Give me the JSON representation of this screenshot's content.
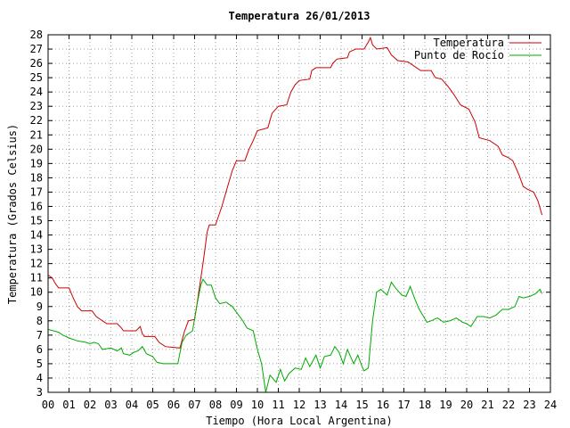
{
  "chart_data": {
    "type": "line",
    "title": "Temperatura 26/01/2013",
    "xlabel": "Tiempo (Hora Local Argentina)",
    "ylabel": "Temperatura (Grados Celsius)",
    "xlim": [
      0,
      24
    ],
    "ylim": [
      3,
      28
    ],
    "x_ticks": [
      "00",
      "01",
      "02",
      "03",
      "04",
      "05",
      "06",
      "07",
      "08",
      "09",
      "10",
      "11",
      "12",
      "13",
      "14",
      "15",
      "16",
      "17",
      "18",
      "19",
      "20",
      "21",
      "22",
      "23",
      "24"
    ],
    "y_ticks": [
      3,
      4,
      5,
      6,
      7,
      8,
      9,
      10,
      11,
      12,
      13,
      14,
      15,
      16,
      17,
      18,
      19,
      20,
      21,
      22,
      23,
      24,
      25,
      26,
      27,
      28
    ],
    "grid": true,
    "legend_position": "top-right",
    "series": [
      {
        "name": "Temperatura",
        "color": "#cc0000",
        "points": [
          [
            0,
            11.2
          ],
          [
            0.2,
            11.0
          ],
          [
            0.35,
            10.6
          ],
          [
            0.5,
            10.3
          ],
          [
            1.0,
            10.3
          ],
          [
            1.2,
            9.6
          ],
          [
            1.4,
            9.0
          ],
          [
            1.6,
            8.7
          ],
          [
            2.1,
            8.7
          ],
          [
            2.3,
            8.3
          ],
          [
            2.6,
            8.0
          ],
          [
            2.8,
            7.8
          ],
          [
            3.3,
            7.8
          ],
          [
            3.5,
            7.5
          ],
          [
            3.6,
            7.3
          ],
          [
            4.2,
            7.3
          ],
          [
            4.4,
            7.6
          ],
          [
            4.5,
            7.1
          ],
          [
            4.6,
            6.9
          ],
          [
            5.1,
            6.9
          ],
          [
            5.3,
            6.5
          ],
          [
            5.6,
            6.2
          ],
          [
            6.3,
            6.1
          ],
          [
            6.5,
            7.2
          ],
          [
            6.7,
            8.0
          ],
          [
            7.0,
            8.1
          ],
          [
            7.1,
            9.0
          ],
          [
            7.2,
            10.0
          ],
          [
            7.4,
            12.0
          ],
          [
            7.6,
            14.2
          ],
          [
            7.7,
            14.7
          ],
          [
            8.0,
            14.7
          ],
          [
            8.3,
            16.0
          ],
          [
            8.6,
            17.5
          ],
          [
            8.8,
            18.5
          ],
          [
            9.0,
            19.2
          ],
          [
            9.4,
            19.2
          ],
          [
            9.6,
            20.0
          ],
          [
            9.8,
            20.6
          ],
          [
            10.0,
            21.3
          ],
          [
            10.5,
            21.5
          ],
          [
            10.7,
            22.5
          ],
          [
            11.0,
            23.0
          ],
          [
            11.4,
            23.1
          ],
          [
            11.6,
            24.0
          ],
          [
            11.8,
            24.5
          ],
          [
            12.0,
            24.8
          ],
          [
            12.5,
            24.9
          ],
          [
            12.6,
            25.5
          ],
          [
            12.8,
            25.7
          ],
          [
            13.5,
            25.7
          ],
          [
            13.6,
            26.0
          ],
          [
            13.8,
            26.3
          ],
          [
            14.3,
            26.4
          ],
          [
            14.4,
            26.8
          ],
          [
            14.7,
            27.0
          ],
          [
            15.1,
            27.0
          ],
          [
            15.3,
            27.5
          ],
          [
            15.4,
            27.8
          ],
          [
            15.5,
            27.3
          ],
          [
            15.7,
            27.0
          ],
          [
            16.2,
            27.1
          ],
          [
            16.4,
            26.6
          ],
          [
            16.7,
            26.2
          ],
          [
            17.2,
            26.1
          ],
          [
            17.5,
            25.8
          ],
          [
            17.8,
            25.5
          ],
          [
            18.3,
            25.5
          ],
          [
            18.5,
            25.0
          ],
          [
            18.8,
            24.9
          ],
          [
            19.1,
            24.4
          ],
          [
            19.4,
            23.8
          ],
          [
            19.7,
            23.1
          ],
          [
            20.1,
            22.8
          ],
          [
            20.4,
            21.9
          ],
          [
            20.6,
            20.8
          ],
          [
            21.1,
            20.6
          ],
          [
            21.5,
            20.2
          ],
          [
            21.7,
            19.6
          ],
          [
            22.0,
            19.4
          ],
          [
            22.2,
            19.2
          ],
          [
            22.5,
            18.2
          ],
          [
            22.7,
            17.4
          ],
          [
            22.9,
            17.2
          ],
          [
            23.2,
            17.0
          ],
          [
            23.4,
            16.4
          ],
          [
            23.6,
            15.4
          ]
        ]
      },
      {
        "name": "Punto de Rocío",
        "color": "#00aa00",
        "points": [
          [
            0,
            7.4
          ],
          [
            0.5,
            7.2
          ],
          [
            0.7,
            7.0
          ],
          [
            1.0,
            6.8
          ],
          [
            1.4,
            6.6
          ],
          [
            1.8,
            6.5
          ],
          [
            2.0,
            6.4
          ],
          [
            2.2,
            6.5
          ],
          [
            2.4,
            6.4
          ],
          [
            2.6,
            6.0
          ],
          [
            3.0,
            6.1
          ],
          [
            3.3,
            5.9
          ],
          [
            3.5,
            6.1
          ],
          [
            3.6,
            5.7
          ],
          [
            3.9,
            5.6
          ],
          [
            4.1,
            5.8
          ],
          [
            4.3,
            5.9
          ],
          [
            4.5,
            6.2
          ],
          [
            4.7,
            5.7
          ],
          [
            5.0,
            5.5
          ],
          [
            5.2,
            5.1
          ],
          [
            5.5,
            5.0
          ],
          [
            6.0,
            5.0
          ],
          [
            6.2,
            5.0
          ],
          [
            6.4,
            6.5
          ],
          [
            6.6,
            7.0
          ],
          [
            6.9,
            7.3
          ],
          [
            7.1,
            9.0
          ],
          [
            7.3,
            10.5
          ],
          [
            7.4,
            10.9
          ],
          [
            7.6,
            10.5
          ],
          [
            7.8,
            10.5
          ],
          [
            8.0,
            9.6
          ],
          [
            8.2,
            9.2
          ],
          [
            8.5,
            9.3
          ],
          [
            8.8,
            9.0
          ],
          [
            9.1,
            8.4
          ],
          [
            9.3,
            8.0
          ],
          [
            9.5,
            7.5
          ],
          [
            9.8,
            7.3
          ],
          [
            10.0,
            6.0
          ],
          [
            10.2,
            5.0
          ],
          [
            10.4,
            3.0
          ],
          [
            10.6,
            4.2
          ],
          [
            10.9,
            3.7
          ],
          [
            11.1,
            4.6
          ],
          [
            11.3,
            3.8
          ],
          [
            11.5,
            4.3
          ],
          [
            11.8,
            4.7
          ],
          [
            12.1,
            4.6
          ],
          [
            12.3,
            5.4
          ],
          [
            12.5,
            4.8
          ],
          [
            12.8,
            5.6
          ],
          [
            13.0,
            4.7
          ],
          [
            13.2,
            5.5
          ],
          [
            13.5,
            5.6
          ],
          [
            13.7,
            6.2
          ],
          [
            13.9,
            5.8
          ],
          [
            14.1,
            5.0
          ],
          [
            14.3,
            6.0
          ],
          [
            14.6,
            5.0
          ],
          [
            14.8,
            5.6
          ],
          [
            15.0,
            4.8
          ],
          [
            15.1,
            4.5
          ],
          [
            15.3,
            4.7
          ],
          [
            15.5,
            8.0
          ],
          [
            15.7,
            10.0
          ],
          [
            15.9,
            10.2
          ],
          [
            16.2,
            9.8
          ],
          [
            16.4,
            10.7
          ],
          [
            16.6,
            10.3
          ],
          [
            16.9,
            9.8
          ],
          [
            17.1,
            9.7
          ],
          [
            17.3,
            10.4
          ],
          [
            17.5,
            9.6
          ],
          [
            17.7,
            8.9
          ],
          [
            17.9,
            8.4
          ],
          [
            18.1,
            7.9
          ],
          [
            18.3,
            8.0
          ],
          [
            18.6,
            8.2
          ],
          [
            18.9,
            7.9
          ],
          [
            19.2,
            8.0
          ],
          [
            19.5,
            8.2
          ],
          [
            19.8,
            7.9
          ],
          [
            20.0,
            7.8
          ],
          [
            20.2,
            7.6
          ],
          [
            20.5,
            8.3
          ],
          [
            20.8,
            8.3
          ],
          [
            21.1,
            8.2
          ],
          [
            21.4,
            8.4
          ],
          [
            21.7,
            8.8
          ],
          [
            22.0,
            8.8
          ],
          [
            22.3,
            9.0
          ],
          [
            22.5,
            9.7
          ],
          [
            22.7,
            9.6
          ],
          [
            23.0,
            9.7
          ],
          [
            23.3,
            9.9
          ],
          [
            23.5,
            10.2
          ],
          [
            23.6,
            9.9
          ]
        ]
      }
    ]
  }
}
